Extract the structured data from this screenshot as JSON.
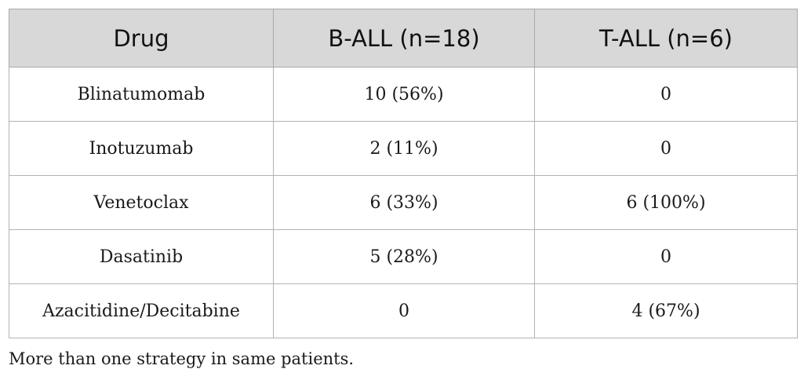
{
  "table": {
    "headers": [
      "Drug",
      "B-ALL (n=18)",
      "T-ALL (n=6)"
    ],
    "rows": [
      [
        "Blinatumomab",
        "10 (56%)",
        "0"
      ],
      [
        "Inotuzumab",
        "2 (11%)",
        "0"
      ],
      [
        "Venetoclax",
        "6 (33%)",
        "6 (100%)"
      ],
      [
        "Dasatinib",
        "5 (28%)",
        "0"
      ],
      [
        "Azacitidine/Decitabine",
        "0",
        "4 (67%)"
      ]
    ]
  },
  "footnote": "More than one strategy in same patients.",
  "colors": {
    "header_background": "#d8d8d8",
    "border": "#b3b3b3"
  }
}
